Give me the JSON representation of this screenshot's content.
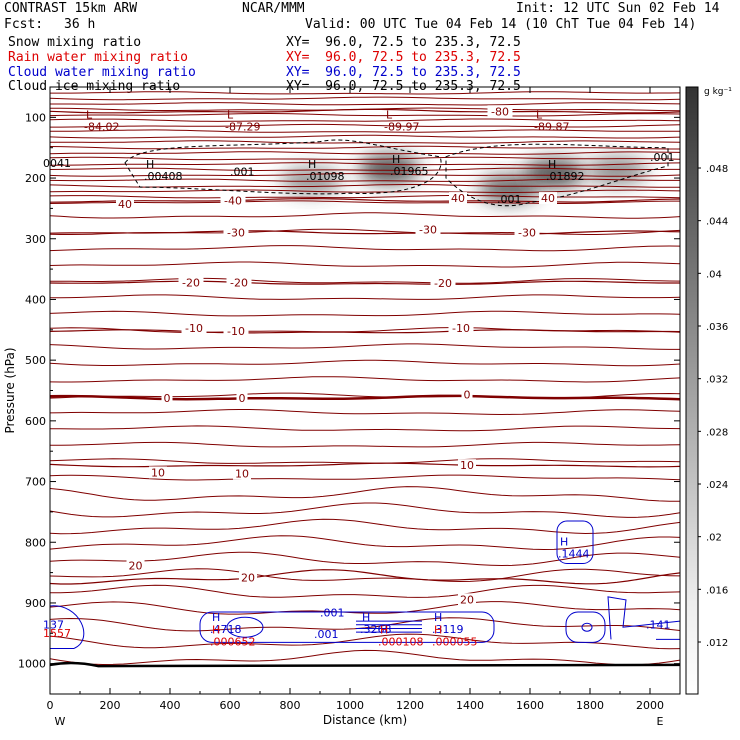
{
  "header": {
    "model": "CONTRAST 15km ARW",
    "center": "NCAR/MMM",
    "init": "Init: 12 UTC Sun 02 Feb 14",
    "fcst_label": "Fcst:",
    "fcst_value": "36 h",
    "valid": "Valid: 00 UTC Tue 04 Feb 14 (10 ChT Tue 04 Feb 14)"
  },
  "fields": [
    {
      "name": "Snow mixing ratio",
      "xy": "XY=  96.0, 72.5 to 235.3, 72.5",
      "color": "#000000"
    },
    {
      "name": "Rain water mixing ratio",
      "xy": "XY=  96.0, 72.5 to 235.3, 72.5",
      "color": "#dd0000"
    },
    {
      "name": "Cloud water mixing ratio",
      "xy": "XY=  96.0, 72.5 to 235.3, 72.5",
      "color": "#0000cc"
    },
    {
      "name": "Cloud ice mixing ratio",
      "xy": "XY=  96.0, 72.5 to 235.3, 72.5",
      "color": "#000000"
    }
  ],
  "chart_data": {
    "type": "heatmap",
    "xlabel": "Distance (km)",
    "ylabel": "Pressure (hPa)",
    "xlim": [
      0,
      2100
    ],
    "ylim": [
      1050,
      50
    ],
    "x_ticks": [
      0,
      200,
      400,
      600,
      800,
      1000,
      1200,
      1400,
      1600,
      1800,
      2000
    ],
    "y_ticks": [
      100,
      200,
      300,
      400,
      500,
      600,
      700,
      800,
      900,
      1000
    ],
    "x_end_labels": {
      "left": "W",
      "right": "E"
    },
    "colorbar": {
      "unit": "g kg⁻¹",
      "ticks": [
        ".048",
        ".044",
        ".04",
        ".036",
        ".032",
        ".028",
        ".024",
        ".02",
        ".016",
        ".012"
      ]
    },
    "temperature_contours": [
      {
        "value": "-80",
        "p": 90
      },
      {
        "value": "-40",
        "p": 237
      },
      {
        "value": "-30",
        "p": 290
      },
      {
        "value": "-20",
        "p": 373
      },
      {
        "value": "-10",
        "p": 453
      },
      {
        "value": "0",
        "p": 562
      },
      {
        "value": "10",
        "p": 673
      },
      {
        "value": "20",
        "p": 858
      }
    ],
    "temperature_labels": [
      {
        "text": "-80",
        "x": 1500,
        "p": 90
      },
      {
        "text": "40",
        "x": 250,
        "p": 243
      },
      {
        "text": "-40",
        "x": 610,
        "p": 237
      },
      {
        "text": "40",
        "x": 1360,
        "p": 233
      },
      {
        "text": "40",
        "x": 1660,
        "p": 233
      },
      {
        "text": "-30",
        "x": 620,
        "p": 290
      },
      {
        "text": "-30",
        "x": 1260,
        "p": 285
      },
      {
        "text": "-30",
        "x": 1590,
        "p": 290
      },
      {
        "text": "-20",
        "x": 470,
        "p": 372
      },
      {
        "text": "-20",
        "x": 630,
        "p": 372
      },
      {
        "text": "-20",
        "x": 1310,
        "p": 373
      },
      {
        "text": "-10",
        "x": 480,
        "p": 447
      },
      {
        "text": "-10",
        "x": 620,
        "p": 452
      },
      {
        "text": "-10",
        "x": 1370,
        "p": 447
      },
      {
        "text": "0",
        "x": 390,
        "p": 562
      },
      {
        "text": "0",
        "x": 640,
        "p": 562
      },
      {
        "text": "0",
        "x": 1390,
        "p": 557
      },
      {
        "text": "10",
        "x": 360,
        "p": 685
      },
      {
        "text": "10",
        "x": 640,
        "p": 687
      },
      {
        "text": "10",
        "x": 1390,
        "p": 673
      },
      {
        "text": "20",
        "x": 285,
        "p": 838
      },
      {
        "text": "20",
        "x": 660,
        "p": 858
      },
      {
        "text": "20",
        "x": 1390,
        "p": 894
      }
    ],
    "extrema": [
      {
        "kind": "L",
        "value": "-84.02",
        "x": 140,
        "p": 107,
        "color": "#800000"
      },
      {
        "kind": "L",
        "value": "-87.29",
        "x": 610,
        "p": 107,
        "color": "#800000"
      },
      {
        "kind": "L",
        "value": "-89.97",
        "x": 1140,
        "p": 107,
        "color": "#800000"
      },
      {
        "kind": "L",
        "value": "-89.87",
        "x": 1640,
        "p": 107,
        "color": "#800000"
      },
      {
        "kind": "H",
        "value": ".00408",
        "x": 340,
        "p": 188,
        "color": "#000000"
      },
      {
        "kind": "H",
        "value": ".01098",
        "x": 880,
        "p": 188,
        "color": "#000000"
      },
      {
        "kind": "H",
        "value": ".01965",
        "x": 1160,
        "p": 180,
        "color": "#000000"
      },
      {
        "kind": "H",
        "value": ".01892",
        "x": 1680,
        "p": 188,
        "color": "#000000"
      },
      {
        "kind": "H",
        "value": ".1444",
        "x": 1720,
        "p": 810,
        "color": "#0000cc"
      },
      {
        "kind": "H",
        "value": ".4718",
        "x": 560,
        "p": 935,
        "color": "#0000cc"
      },
      {
        "kind": "H",
        "value": ".3268",
        "x": 1060,
        "p": 935,
        "color": "#0000cc"
      },
      {
        "kind": "H",
        "value": ".3119",
        "x": 1300,
        "p": 935,
        "color": "#0000cc"
      },
      {
        "kind": "H",
        "value": ".000652",
        "x": 560,
        "p": 955,
        "color": "#dd0000"
      },
      {
        "kind": "H",
        "value": ".000108",
        "x": 1120,
        "p": 955,
        "color": "#dd0000"
      },
      {
        "kind": "H",
        "value": ".000055",
        "x": 1300,
        "p": 955,
        "color": "#dd0000"
      }
    ],
    "edge_labels": [
      {
        "text": "0041",
        "x": 10,
        "p": 182,
        "color": "#000000"
      },
      {
        "text": "137",
        "x": 10,
        "p": 942,
        "color": "#0000cc"
      },
      {
        "text": "1557",
        "x": 10,
        "p": 956,
        "color": "#dd0000"
      },
      {
        "text": ".141",
        "x": 2020,
        "p": 942,
        "color": "#0000cc"
      }
    ],
    "contour_values": [
      {
        "text": ".001",
        "x": 600,
        "p": 196,
        "color": "#000000"
      },
      {
        "text": ".001",
        "x": 1490,
        "p": 241,
        "color": "#000000"
      },
      {
        "text": ".001",
        "x": 2000,
        "p": 172,
        "color": "#000000"
      },
      {
        "text": ".001",
        "x": 900,
        "p": 922,
        "color": "#0000cc"
      },
      {
        "text": ".001",
        "x": 880,
        "p": 958,
        "color": "#0000cc"
      }
    ],
    "snow_maxima": [
      {
        "x": 870,
        "p": 205,
        "value": 0.011
      },
      {
        "x": 1130,
        "p": 185,
        "value": 0.0197
      },
      {
        "x": 1530,
        "p": 218,
        "value": 0.016
      },
      {
        "x": 1680,
        "p": 192,
        "value": 0.0189
      },
      {
        "x": 1890,
        "p": 188,
        "value": 0.012
      }
    ]
  }
}
